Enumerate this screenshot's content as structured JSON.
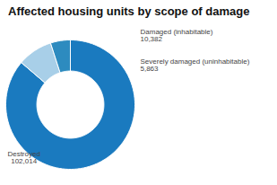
{
  "chart_data": {
    "type": "donut",
    "title": "Affected housing units by scope of damage",
    "categories": [
      "Destroyed",
      "Damaged (inhabitable)",
      "Severely damaged (uninhabitable)"
    ],
    "values": [
      102014,
      10382,
      5863
    ],
    "value_labels": [
      "102,014",
      "10,382",
      "5,863"
    ],
    "colors": [
      "#1a7abf",
      "#a8cfe8",
      "#2d8bbf"
    ],
    "data_labels": true
  }
}
